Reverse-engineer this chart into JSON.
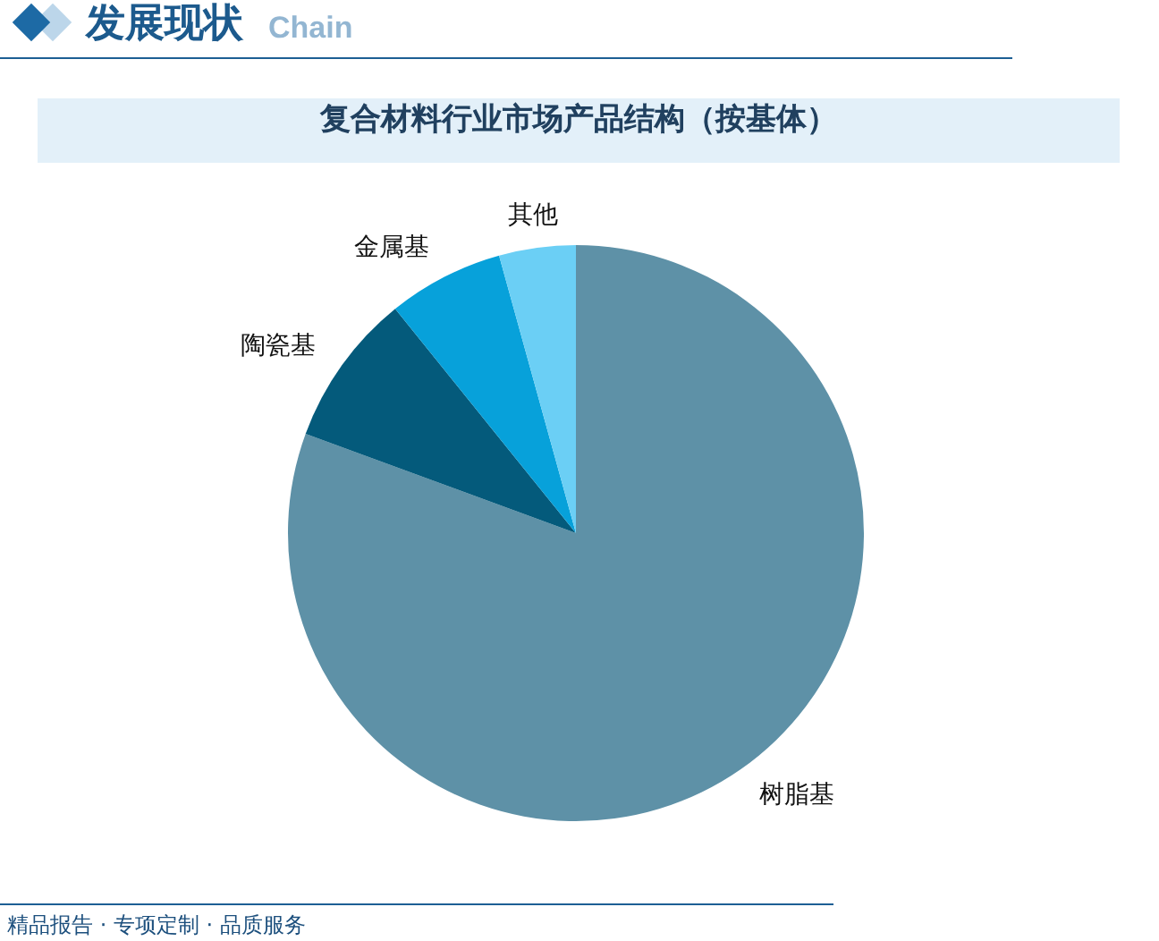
{
  "chart_data": {
    "type": "pie",
    "title": "复合材料行业市场产品结构（按基体）",
    "categories": [
      "树脂基",
      "陶瓷基",
      "金属基",
      "其他"
    ],
    "values": [
      80.6,
      8.6,
      6.5,
      4.3
    ],
    "colors": [
      "#5e91a7",
      "#045a7b",
      "#07a1da",
      "#6bcff5"
    ],
    "annotations": [
      "发展现状",
      "Chain",
      "精品报告 · 专项定制 · 品质服务"
    ]
  }
}
